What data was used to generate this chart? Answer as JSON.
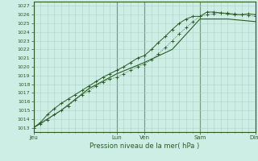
{
  "bg_color": "#cceee4",
  "grid_color": "#aad4c8",
  "line_color": "#2d5a27",
  "title": "Pression niveau de la mer( hPa )",
  "ylabel_ticks": [
    1013,
    1014,
    1015,
    1016,
    1017,
    1018,
    1019,
    1020,
    1021,
    1022,
    1023,
    1024,
    1025,
    1026,
    1027
  ],
  "ylim": [
    1012.5,
    1027.5
  ],
  "xlim": [
    0,
    96
  ],
  "day_ticks": [
    0,
    36,
    48,
    72,
    96
  ],
  "day_labels": [
    "Jeu",
    "Lun",
    "Ven",
    "Sam",
    "Dim"
  ],
  "line1_x": [
    0,
    3,
    6,
    9,
    12,
    15,
    18,
    21,
    24,
    27,
    30,
    33,
    36,
    39,
    42,
    45,
    48,
    51,
    54,
    57,
    60,
    63,
    66,
    69,
    72,
    75,
    78,
    81,
    84,
    87,
    90,
    93,
    96
  ],
  "line1_y": [
    1013.0,
    1013.4,
    1013.9,
    1014.5,
    1015.0,
    1015.5,
    1016.2,
    1016.8,
    1017.2,
    1017.8,
    1018.2,
    1018.6,
    1018.8,
    1019.2,
    1019.6,
    1020.0,
    1020.3,
    1020.8,
    1021.5,
    1022.2,
    1023.0,
    1023.8,
    1024.5,
    1025.2,
    1025.8,
    1026.0,
    1026.1,
    1026.2,
    1026.2,
    1026.1,
    1026.0,
    1025.9,
    1025.8
  ],
  "line2_x": [
    0,
    3,
    6,
    9,
    12,
    15,
    18,
    21,
    24,
    27,
    30,
    33,
    36,
    39,
    42,
    45,
    48,
    51,
    54,
    57,
    60,
    63,
    66,
    69,
    72,
    75,
    78,
    81,
    84,
    87,
    90,
    93,
    96
  ],
  "line2_y": [
    1013.0,
    1013.6,
    1014.5,
    1015.2,
    1015.8,
    1016.3,
    1016.8,
    1017.3,
    1017.8,
    1018.3,
    1018.8,
    1019.2,
    1019.6,
    1020.0,
    1020.5,
    1021.0,
    1021.3,
    1022.0,
    1022.8,
    1023.5,
    1024.3,
    1025.0,
    1025.5,
    1025.8,
    1025.8,
    1026.3,
    1026.3,
    1026.2,
    1026.1,
    1026.0,
    1026.0,
    1026.1,
    1026.0
  ],
  "line3_x": [
    0,
    12,
    24,
    36,
    48,
    60,
    72,
    84,
    96
  ],
  "line3_y": [
    1013.0,
    1015.0,
    1017.5,
    1019.2,
    1020.5,
    1022.0,
    1025.5,
    1025.5,
    1025.2
  ]
}
